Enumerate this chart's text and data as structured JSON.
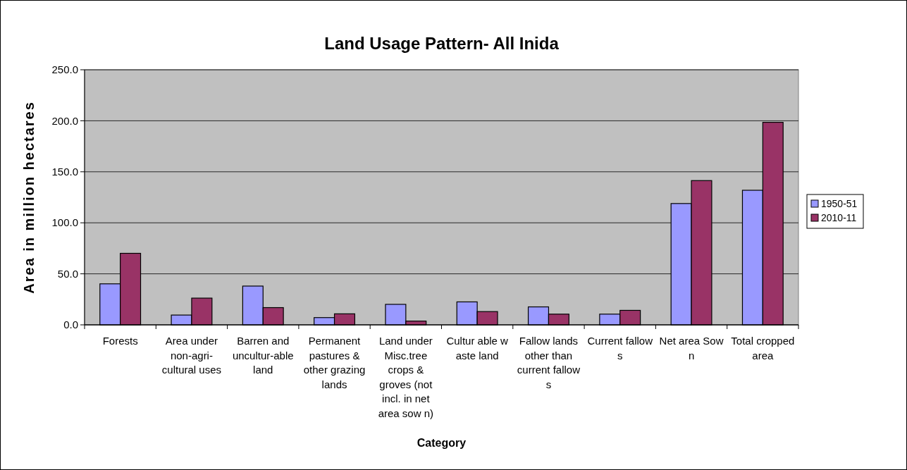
{
  "chart_data": {
    "type": "bar",
    "title": "Land Usage Pattern- All Inida",
    "xlabel": "Category",
    "ylabel": "Area in million hectares",
    "categories": [
      "Forests",
      "Area under non-agri-cultural uses",
      "Barren and uncultur-able land",
      "Permanent pastures & other grazing lands",
      "Land under Misc.tree crops & groves (not incl. in net area sow n)",
      "Cultur able w aste land",
      "Fallow lands other than current fallow s",
      "Current fallow s",
      "Net area Sow n",
      "Total cropped area"
    ],
    "series": [
      {
        "name": "1950-51",
        "color": "#9999ff",
        "values": [
          40.2,
          9.6,
          38.0,
          7.1,
          20.1,
          22.5,
          17.6,
          10.5,
          118.9,
          131.9
        ]
      },
      {
        "name": "2010-11",
        "color": "#993366",
        "values": [
          70.1,
          26.2,
          16.9,
          10.8,
          3.7,
          13.0,
          10.5,
          14.2,
          141.4,
          198.5
        ]
      }
    ],
    "ylim": [
      0,
      250
    ],
    "yticks": [
      {
        "value": 0,
        "label": "0.0"
      },
      {
        "value": 50,
        "label": "50.0"
      },
      {
        "value": 100,
        "label": "100.0"
      },
      {
        "value": 150,
        "label": "150.0"
      },
      {
        "value": 200,
        "label": "200.0"
      },
      {
        "value": 250,
        "label": "250.0"
      }
    ],
    "grid": "y",
    "legend": "right"
  }
}
